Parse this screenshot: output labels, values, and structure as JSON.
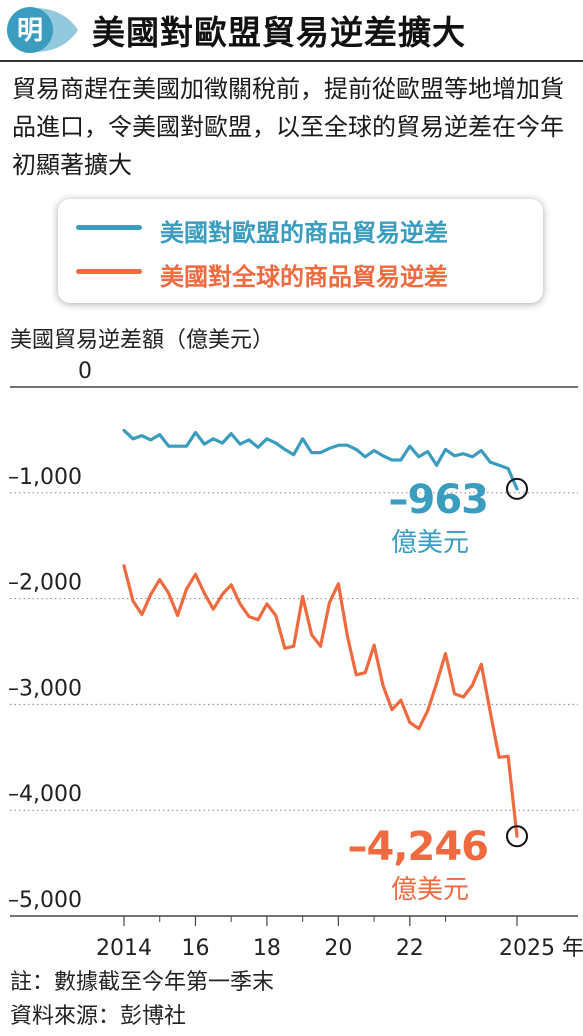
{
  "header": {
    "logo_char": "明",
    "title": "美國對歐盟貿易逆差擴大"
  },
  "intro": "貿易商趕在美國加徵關稅前，提前從歐盟等地增加貨品進口，令美國對歐盟，以至全球的貿易逆差在今年初顯著擴大",
  "colors": {
    "eu": "#3a9dbf",
    "world": "#f06a40",
    "logo": "#3a9dbf"
  },
  "chart_data": {
    "type": "line",
    "ylabel": "美國貿易逆差額（億美元）",
    "ylim": [
      -5000,
      0
    ],
    "yticks": [
      {
        "value": 0,
        "label": "0"
      },
      {
        "value": -1000,
        "label": "–1,000"
      },
      {
        "value": -2000,
        "label": "–2,000"
      },
      {
        "value": -3000,
        "label": "–3,000"
      },
      {
        "value": -4000,
        "label": "–4,000"
      },
      {
        "value": -5000,
        "label": "–5,000"
      }
    ],
    "xlim": [
      2014,
      2025.25
    ],
    "xticks": [
      {
        "value": 2014,
        "label": "2014"
      },
      {
        "value": 2016,
        "label": "16"
      },
      {
        "value": 2018,
        "label": "18"
      },
      {
        "value": 2020,
        "label": "20"
      },
      {
        "value": 2022,
        "label": "22"
      },
      {
        "value": 2025,
        "label": "2025 年"
      }
    ],
    "series": [
      {
        "name": "美國對歐盟的商品貿易逆差",
        "color_key": "eu",
        "points": [
          [
            2014.0,
            -410
          ],
          [
            2014.25,
            -490
          ],
          [
            2014.5,
            -460
          ],
          [
            2014.75,
            -500
          ],
          [
            2015.0,
            -450
          ],
          [
            2015.25,
            -560
          ],
          [
            2015.5,
            -560
          ],
          [
            2015.75,
            -560
          ],
          [
            2016.0,
            -430
          ],
          [
            2016.25,
            -540
          ],
          [
            2016.5,
            -490
          ],
          [
            2016.75,
            -530
          ],
          [
            2017.0,
            -440
          ],
          [
            2017.25,
            -540
          ],
          [
            2017.5,
            -500
          ],
          [
            2017.75,
            -570
          ],
          [
            2018.0,
            -490
          ],
          [
            2018.25,
            -530
          ],
          [
            2018.5,
            -590
          ],
          [
            2018.75,
            -640
          ],
          [
            2019.0,
            -490
          ],
          [
            2019.25,
            -620
          ],
          [
            2019.5,
            -620
          ],
          [
            2019.75,
            -580
          ],
          [
            2020.0,
            -550
          ],
          [
            2020.25,
            -550
          ],
          [
            2020.5,
            -590
          ],
          [
            2020.75,
            -660
          ],
          [
            2021.0,
            -600
          ],
          [
            2021.25,
            -650
          ],
          [
            2021.5,
            -690
          ],
          [
            2021.75,
            -690
          ],
          [
            2022.0,
            -560
          ],
          [
            2022.25,
            -660
          ],
          [
            2022.5,
            -610
          ],
          [
            2022.75,
            -740
          ],
          [
            2023.0,
            -590
          ],
          [
            2023.25,
            -650
          ],
          [
            2023.5,
            -630
          ],
          [
            2023.75,
            -660
          ],
          [
            2024.0,
            -600
          ],
          [
            2024.25,
            -710
          ],
          [
            2024.5,
            -740
          ],
          [
            2024.75,
            -770
          ],
          [
            2025.0,
            -963
          ]
        ],
        "end_label": "–963",
        "end_unit": "億美元"
      },
      {
        "name": "美國對全球的商品貿易逆差",
        "color_key": "world",
        "points": [
          [
            2014.0,
            -1690
          ],
          [
            2014.25,
            -2020
          ],
          [
            2014.5,
            -2150
          ],
          [
            2014.75,
            -1960
          ],
          [
            2015.0,
            -1820
          ],
          [
            2015.25,
            -1950
          ],
          [
            2015.5,
            -2160
          ],
          [
            2015.75,
            -1910
          ],
          [
            2016.0,
            -1770
          ],
          [
            2016.25,
            -1950
          ],
          [
            2016.5,
            -2100
          ],
          [
            2016.75,
            -1960
          ],
          [
            2017.0,
            -1870
          ],
          [
            2017.25,
            -2050
          ],
          [
            2017.5,
            -2170
          ],
          [
            2017.75,
            -2200
          ],
          [
            2018.0,
            -2050
          ],
          [
            2018.25,
            -2160
          ],
          [
            2018.5,
            -2470
          ],
          [
            2018.75,
            -2450
          ],
          [
            2019.0,
            -1980
          ],
          [
            2019.25,
            -2340
          ],
          [
            2019.5,
            -2450
          ],
          [
            2019.75,
            -2040
          ],
          [
            2020.0,
            -1860
          ],
          [
            2020.25,
            -2350
          ],
          [
            2020.5,
            -2720
          ],
          [
            2020.75,
            -2700
          ],
          [
            2021.0,
            -2440
          ],
          [
            2021.25,
            -2820
          ],
          [
            2021.5,
            -3050
          ],
          [
            2021.75,
            -2960
          ],
          [
            2022.0,
            -3170
          ],
          [
            2022.25,
            -3230
          ],
          [
            2022.5,
            -3060
          ],
          [
            2022.75,
            -2800
          ],
          [
            2023.0,
            -2520
          ],
          [
            2023.25,
            -2900
          ],
          [
            2023.5,
            -2930
          ],
          [
            2023.75,
            -2820
          ],
          [
            2024.0,
            -2620
          ],
          [
            2024.25,
            -3070
          ],
          [
            2024.5,
            -3500
          ],
          [
            2024.75,
            -3490
          ],
          [
            2025.0,
            -4246
          ]
        ],
        "end_label": "–4,246",
        "end_unit": "億美元"
      }
    ]
  },
  "footnotes": {
    "note": "註：數據截至今年第一季末",
    "source": "資料來源：彭博社"
  }
}
